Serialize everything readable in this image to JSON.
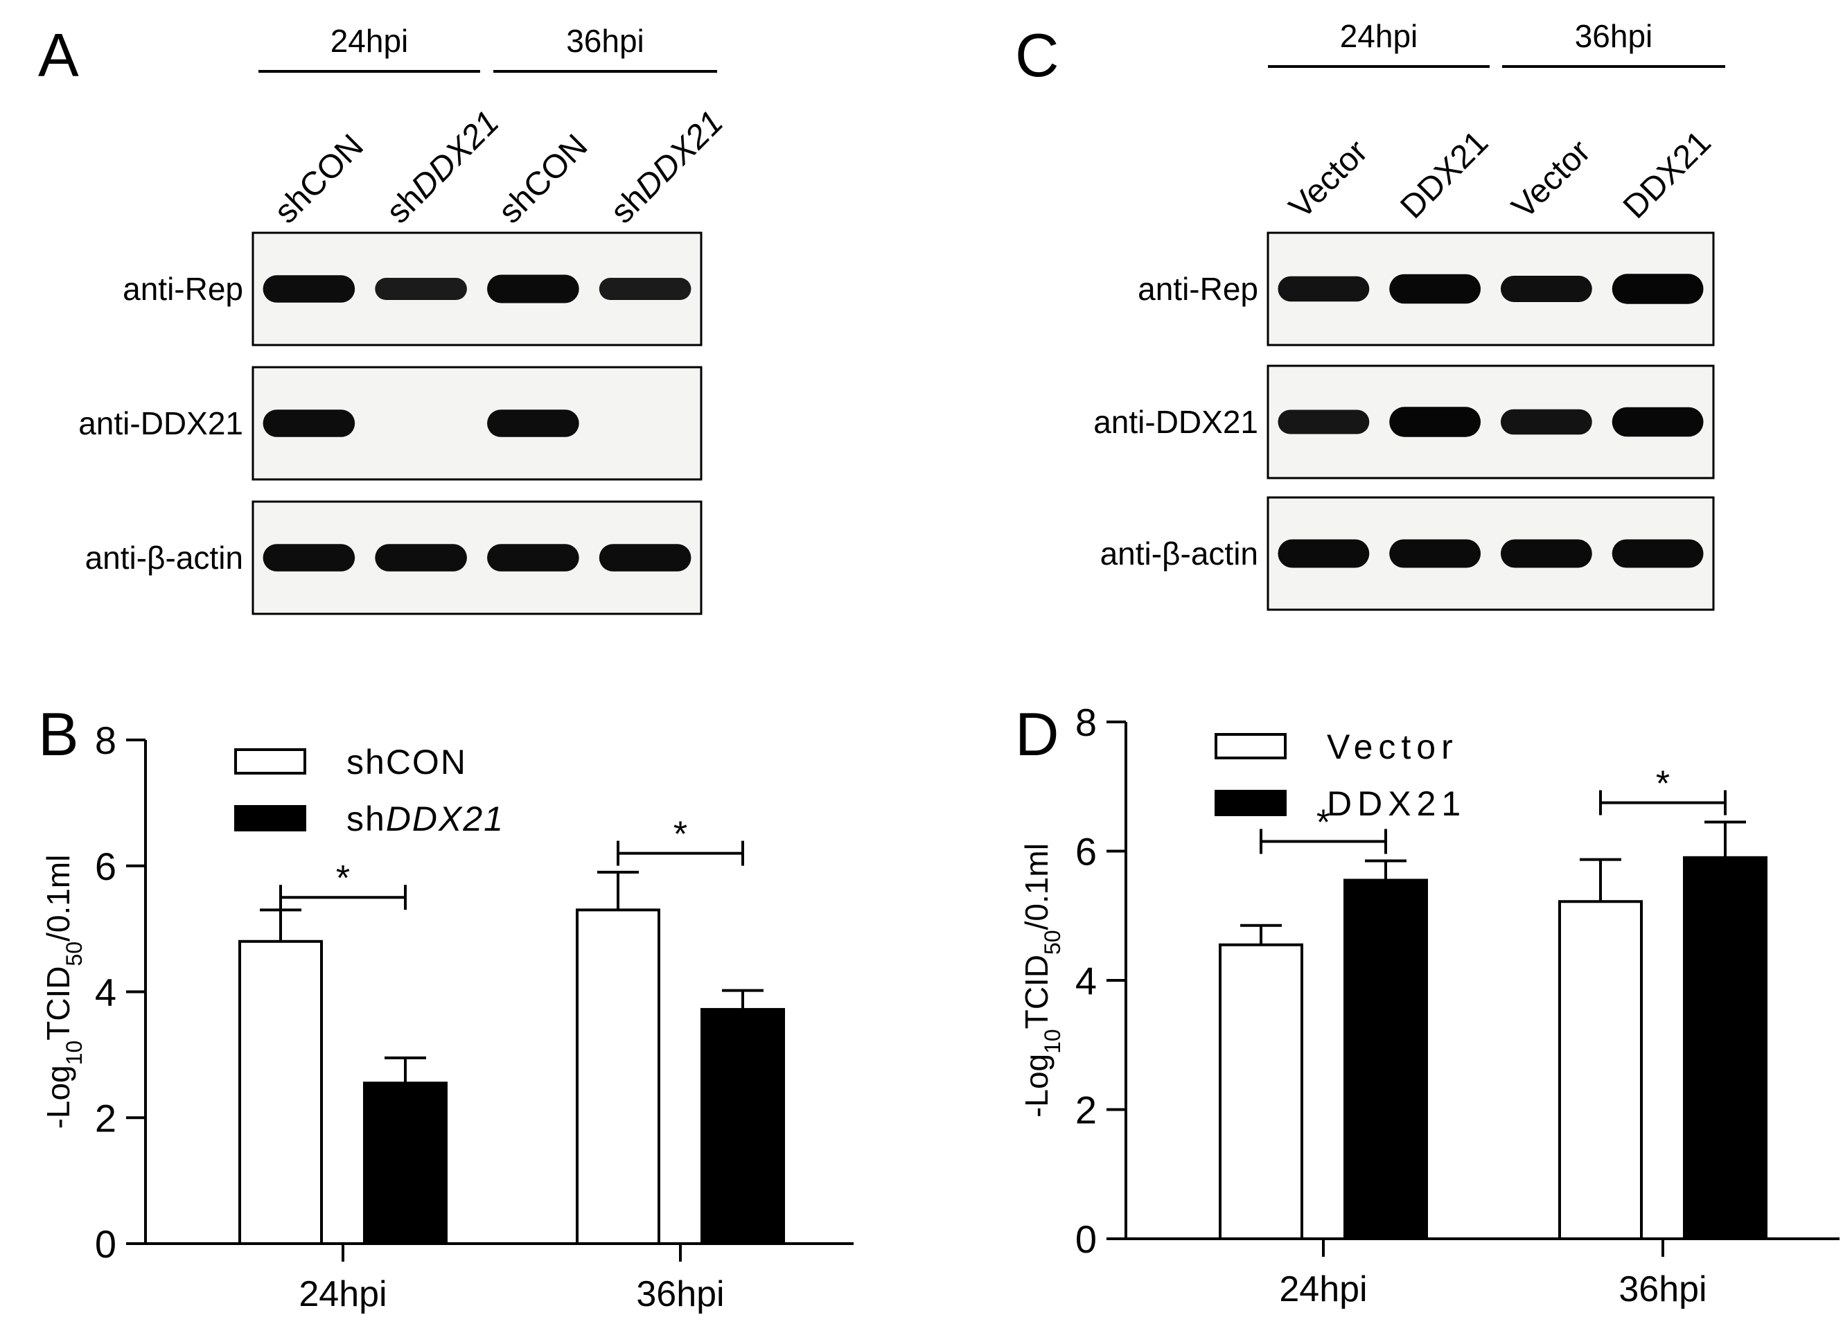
{
  "panels": {
    "A": {
      "letter": "A",
      "groups": [
        "24hpi",
        "36hpi"
      ],
      "lanes": [
        {
          "prefix": "sh",
          "rest": "CON",
          "italic": false
        },
        {
          "prefix": "sh",
          "rest": "DDX21",
          "italic": true
        },
        {
          "prefix": "sh",
          "rest": "CON",
          "italic": false
        },
        {
          "prefix": "sh",
          "rest": "DDX21",
          "italic": true
        }
      ],
      "blots": [
        {
          "label": "anti-Rep",
          "intensity": [
            0.85,
            0.6,
            0.9,
            0.6
          ]
        },
        {
          "label": "anti-DDX21",
          "intensity": [
            0.85,
            0,
            0.85,
            0
          ]
        },
        {
          "label": "anti-β-actin",
          "intensity": [
            0.85,
            0.85,
            0.85,
            0.85
          ]
        }
      ]
    },
    "C": {
      "letter": "C",
      "groups": [
        "24hpi",
        "36hpi"
      ],
      "lanes": [
        {
          "prefix": "",
          "rest": "Vector",
          "italic": false
        },
        {
          "prefix": "",
          "rest": "DDX21",
          "italic": false
        },
        {
          "prefix": "",
          "rest": "Vector",
          "italic": false
        },
        {
          "prefix": "",
          "rest": "DDX21",
          "italic": false
        }
      ],
      "blots": [
        {
          "label": "anti-Rep",
          "intensity": [
            0.75,
            0.95,
            0.8,
            0.98
          ]
        },
        {
          "label": "anti-DDX21",
          "intensity": [
            0.7,
            0.98,
            0.75,
            0.95
          ]
        },
        {
          "label": "anti-β-actin",
          "intensity": [
            0.9,
            0.9,
            0.9,
            0.9
          ]
        }
      ]
    },
    "B": {
      "letter": "B"
    },
    "D": {
      "letter": "D"
    }
  },
  "chart_data": [
    {
      "panel": "B",
      "type": "bar",
      "categories": [
        "24hpi",
        "36hpi"
      ],
      "series": [
        {
          "name_prefix": "sh",
          "name_rest": "CON",
          "italic": false,
          "fill": "#ffffff",
          "values": [
            4.8,
            5.3
          ],
          "errors": [
            0.5,
            0.6
          ]
        },
        {
          "name_prefix": "sh",
          "name_rest": "DDX21",
          "italic": true,
          "fill": "#000000",
          "values": [
            2.55,
            3.72
          ],
          "errors": [
            0.4,
            0.3
          ]
        }
      ],
      "ylabel_main": "-Log",
      "ylabel_sub1": "10",
      "ylabel_mid": "TCID",
      "ylabel_sub2": "50",
      "ylabel_end": "/0.1ml",
      "ylim": [
        0,
        8
      ],
      "yticks": [
        "0",
        "2",
        "4",
        "6",
        "8"
      ],
      "significance": [
        {
          "category": "24hpi",
          "mark": "*",
          "y": 5.5
        },
        {
          "category": "36hpi",
          "mark": "*",
          "y": 6.2
        }
      ],
      "legend": "top-left"
    },
    {
      "panel": "D",
      "type": "bar",
      "categories": [
        "24hpi",
        "36hpi"
      ],
      "series": [
        {
          "name_prefix": "",
          "name_rest": "Vector",
          "italic": false,
          "fill": "#ffffff",
          "values": [
            4.55,
            5.22
          ],
          "errors": [
            0.3,
            0.65
          ]
        },
        {
          "name_prefix": "",
          "name_rest": "DDX21",
          "italic": false,
          "fill": "#000000",
          "values": [
            5.55,
            5.9
          ],
          "errors": [
            0.3,
            0.55
          ]
        }
      ],
      "ylabel_main": "-Log",
      "ylabel_sub1": "10",
      "ylabel_mid": "TCID",
      "ylabel_sub2": "50",
      "ylabel_end": "/0.1ml",
      "ylim": [
        0,
        8
      ],
      "yticks": [
        "0",
        "2",
        "4",
        "6",
        "8"
      ],
      "significance": [
        {
          "category": "24hpi",
          "mark": "*",
          "y": 6.15
        },
        {
          "category": "36hpi",
          "mark": "*",
          "y": 6.75
        }
      ],
      "legend": "top-left"
    }
  ]
}
